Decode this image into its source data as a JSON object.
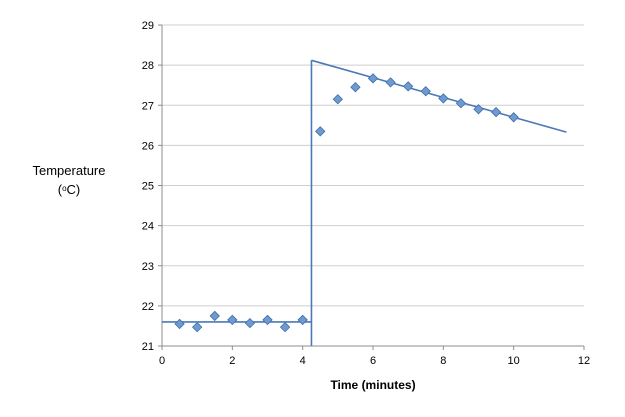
{
  "chart_data": {
    "type": "scatter",
    "title": "",
    "xlabel": "Time (minutes)",
    "ylabel": "Temperature",
    "ylabel_unit": {
      "open": "(",
      "sup": "o",
      "unit": "C)"
    },
    "xlim": [
      0,
      12
    ],
    "ylim": [
      21,
      29
    ],
    "xticks": [
      0,
      2,
      4,
      6,
      8,
      10,
      12
    ],
    "yticks": [
      21,
      22,
      23,
      24,
      25,
      26,
      27,
      28,
      29
    ],
    "grid": "horizontal",
    "legend": "none",
    "colors": {
      "marker": "#6d9bd1",
      "marker_edge": "#3f6ea8",
      "trendline": "#4a79b5",
      "gridline": "#cfcfcf",
      "axis": "#8c8c8c"
    },
    "series": [
      {
        "type": "scatter",
        "x": [
          0.5,
          1.0,
          1.5,
          2.0,
          2.5,
          3.0,
          3.5,
          4.0,
          4.5,
          5.0,
          5.5,
          6.0,
          6.5,
          7.0,
          7.5,
          8.0,
          8.5,
          9.0,
          9.5,
          10.0
        ],
        "y": [
          21.55,
          21.47,
          21.75,
          21.65,
          21.57,
          21.65,
          21.47,
          21.65,
          26.35,
          27.15,
          27.45,
          27.67,
          27.57,
          27.47,
          27.35,
          27.17,
          27.05,
          26.9,
          26.83,
          26.7
        ]
      },
      {
        "type": "line",
        "x": [
          0,
          4.25
        ],
        "y": [
          21.6,
          21.6
        ]
      },
      {
        "type": "line",
        "x": [
          4.25,
          4.25
        ],
        "y": [
          21.0,
          28.12
        ]
      },
      {
        "type": "line",
        "x": [
          4.25,
          11.5
        ],
        "y": [
          28.12,
          26.33
        ]
      }
    ]
  }
}
